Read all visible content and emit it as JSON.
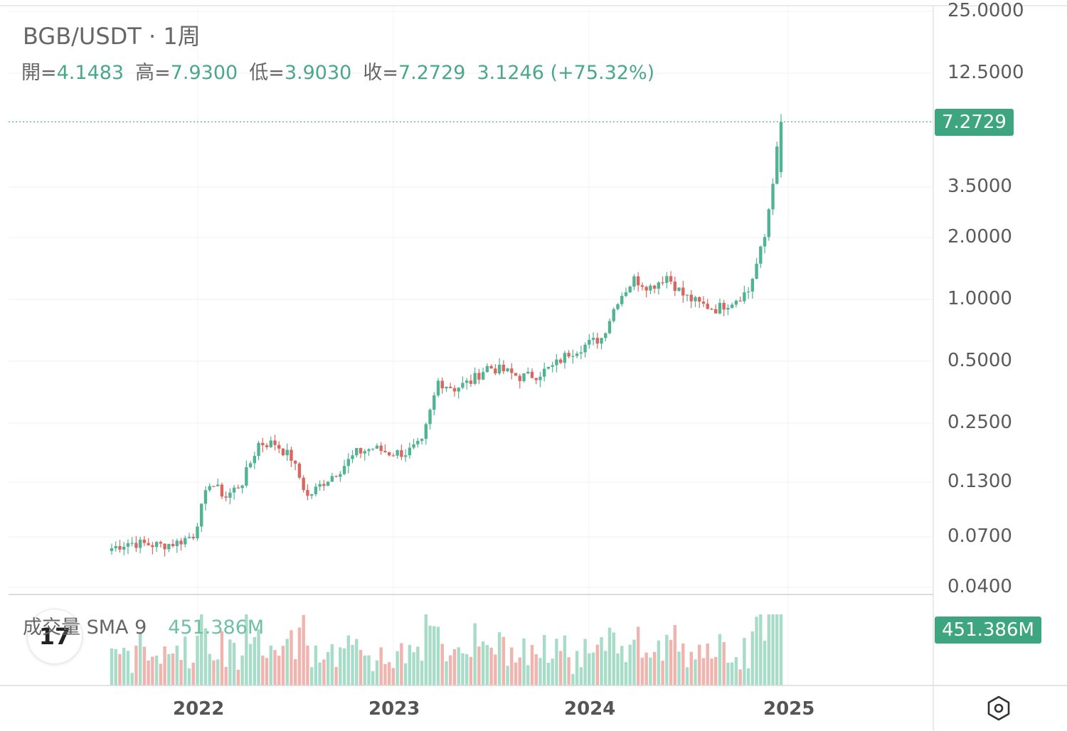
{
  "header": {
    "title": "BGB/USDT · 1周",
    "ohlc": {
      "open_label": "開=",
      "open": "4.1483",
      "high_label": "高=",
      "high": "7.9300",
      "low_label": "低=",
      "low": "3.9030",
      "close_label": "收=",
      "close": "7.2729",
      "change": "3.1246 (+75.32%)"
    }
  },
  "volume_panel": {
    "label": "成交量 SMA 9",
    "value": "451.386M",
    "badge": "451.386M"
  },
  "price_badge": "7.2729",
  "y_axis_labels": [
    "25.0000",
    "12.5000",
    "3.5000",
    "2.0000",
    "1.0000",
    "0.5000",
    "0.2500",
    "0.1300",
    "0.0700",
    "0.0400"
  ],
  "x_axis_labels": [
    "2022",
    "2023",
    "2024",
    "2025"
  ],
  "icons": {
    "logo": "tradingview-logo-icon",
    "settings": "settings-hexagon-icon"
  },
  "colors": {
    "up": "#4fb394",
    "down": "#d9675f",
    "vol_up": "#a6dcc8",
    "vol_down": "#f0b3ae",
    "badge": "#3ea581"
  },
  "chart_data": {
    "type": "candlestick",
    "symbol": "BGB/USDT",
    "interval": "1周",
    "y_scale": "log",
    "ylim": [
      0.04,
      25
    ],
    "x": [
      "2021-07",
      "2021-08",
      "2021-09",
      "2021-10",
      "2021-11",
      "2021-12",
      "2022-01",
      "2022-02",
      "2022-03",
      "2022-04",
      "2022-05",
      "2022-06",
      "2022-07",
      "2022-08",
      "2022-09",
      "2022-10",
      "2022-11",
      "2022-12",
      "2023-01",
      "2023-02",
      "2023-03",
      "2023-04",
      "2023-05",
      "2023-06",
      "2023-07",
      "2023-08",
      "2023-09",
      "2023-10",
      "2023-11",
      "2023-12",
      "2024-01",
      "2024-02",
      "2024-03",
      "2024-04",
      "2024-05",
      "2024-06",
      "2024-07",
      "2024-08",
      "2024-09",
      "2024-10",
      "2024-11",
      "2024-12"
    ],
    "close_approx": [
      0.062,
      0.066,
      0.065,
      0.064,
      0.066,
      0.072,
      0.13,
      0.11,
      0.13,
      0.2,
      0.2,
      0.17,
      0.11,
      0.13,
      0.15,
      0.18,
      0.19,
      0.18,
      0.18,
      0.2,
      0.4,
      0.37,
      0.4,
      0.47,
      0.45,
      0.42,
      0.43,
      0.47,
      0.55,
      0.6,
      0.65,
      1.0,
      1.25,
      1.15,
      1.3,
      1.05,
      0.95,
      0.9,
      0.98,
      1.1,
      2.0,
      7.2729
    ],
    "last": {
      "open": 4.1483,
      "high": 7.93,
      "low": 3.903,
      "close": 7.2729,
      "change": 3.1246,
      "change_pct": 75.32
    },
    "volume_sma9_last": "451.386M"
  }
}
